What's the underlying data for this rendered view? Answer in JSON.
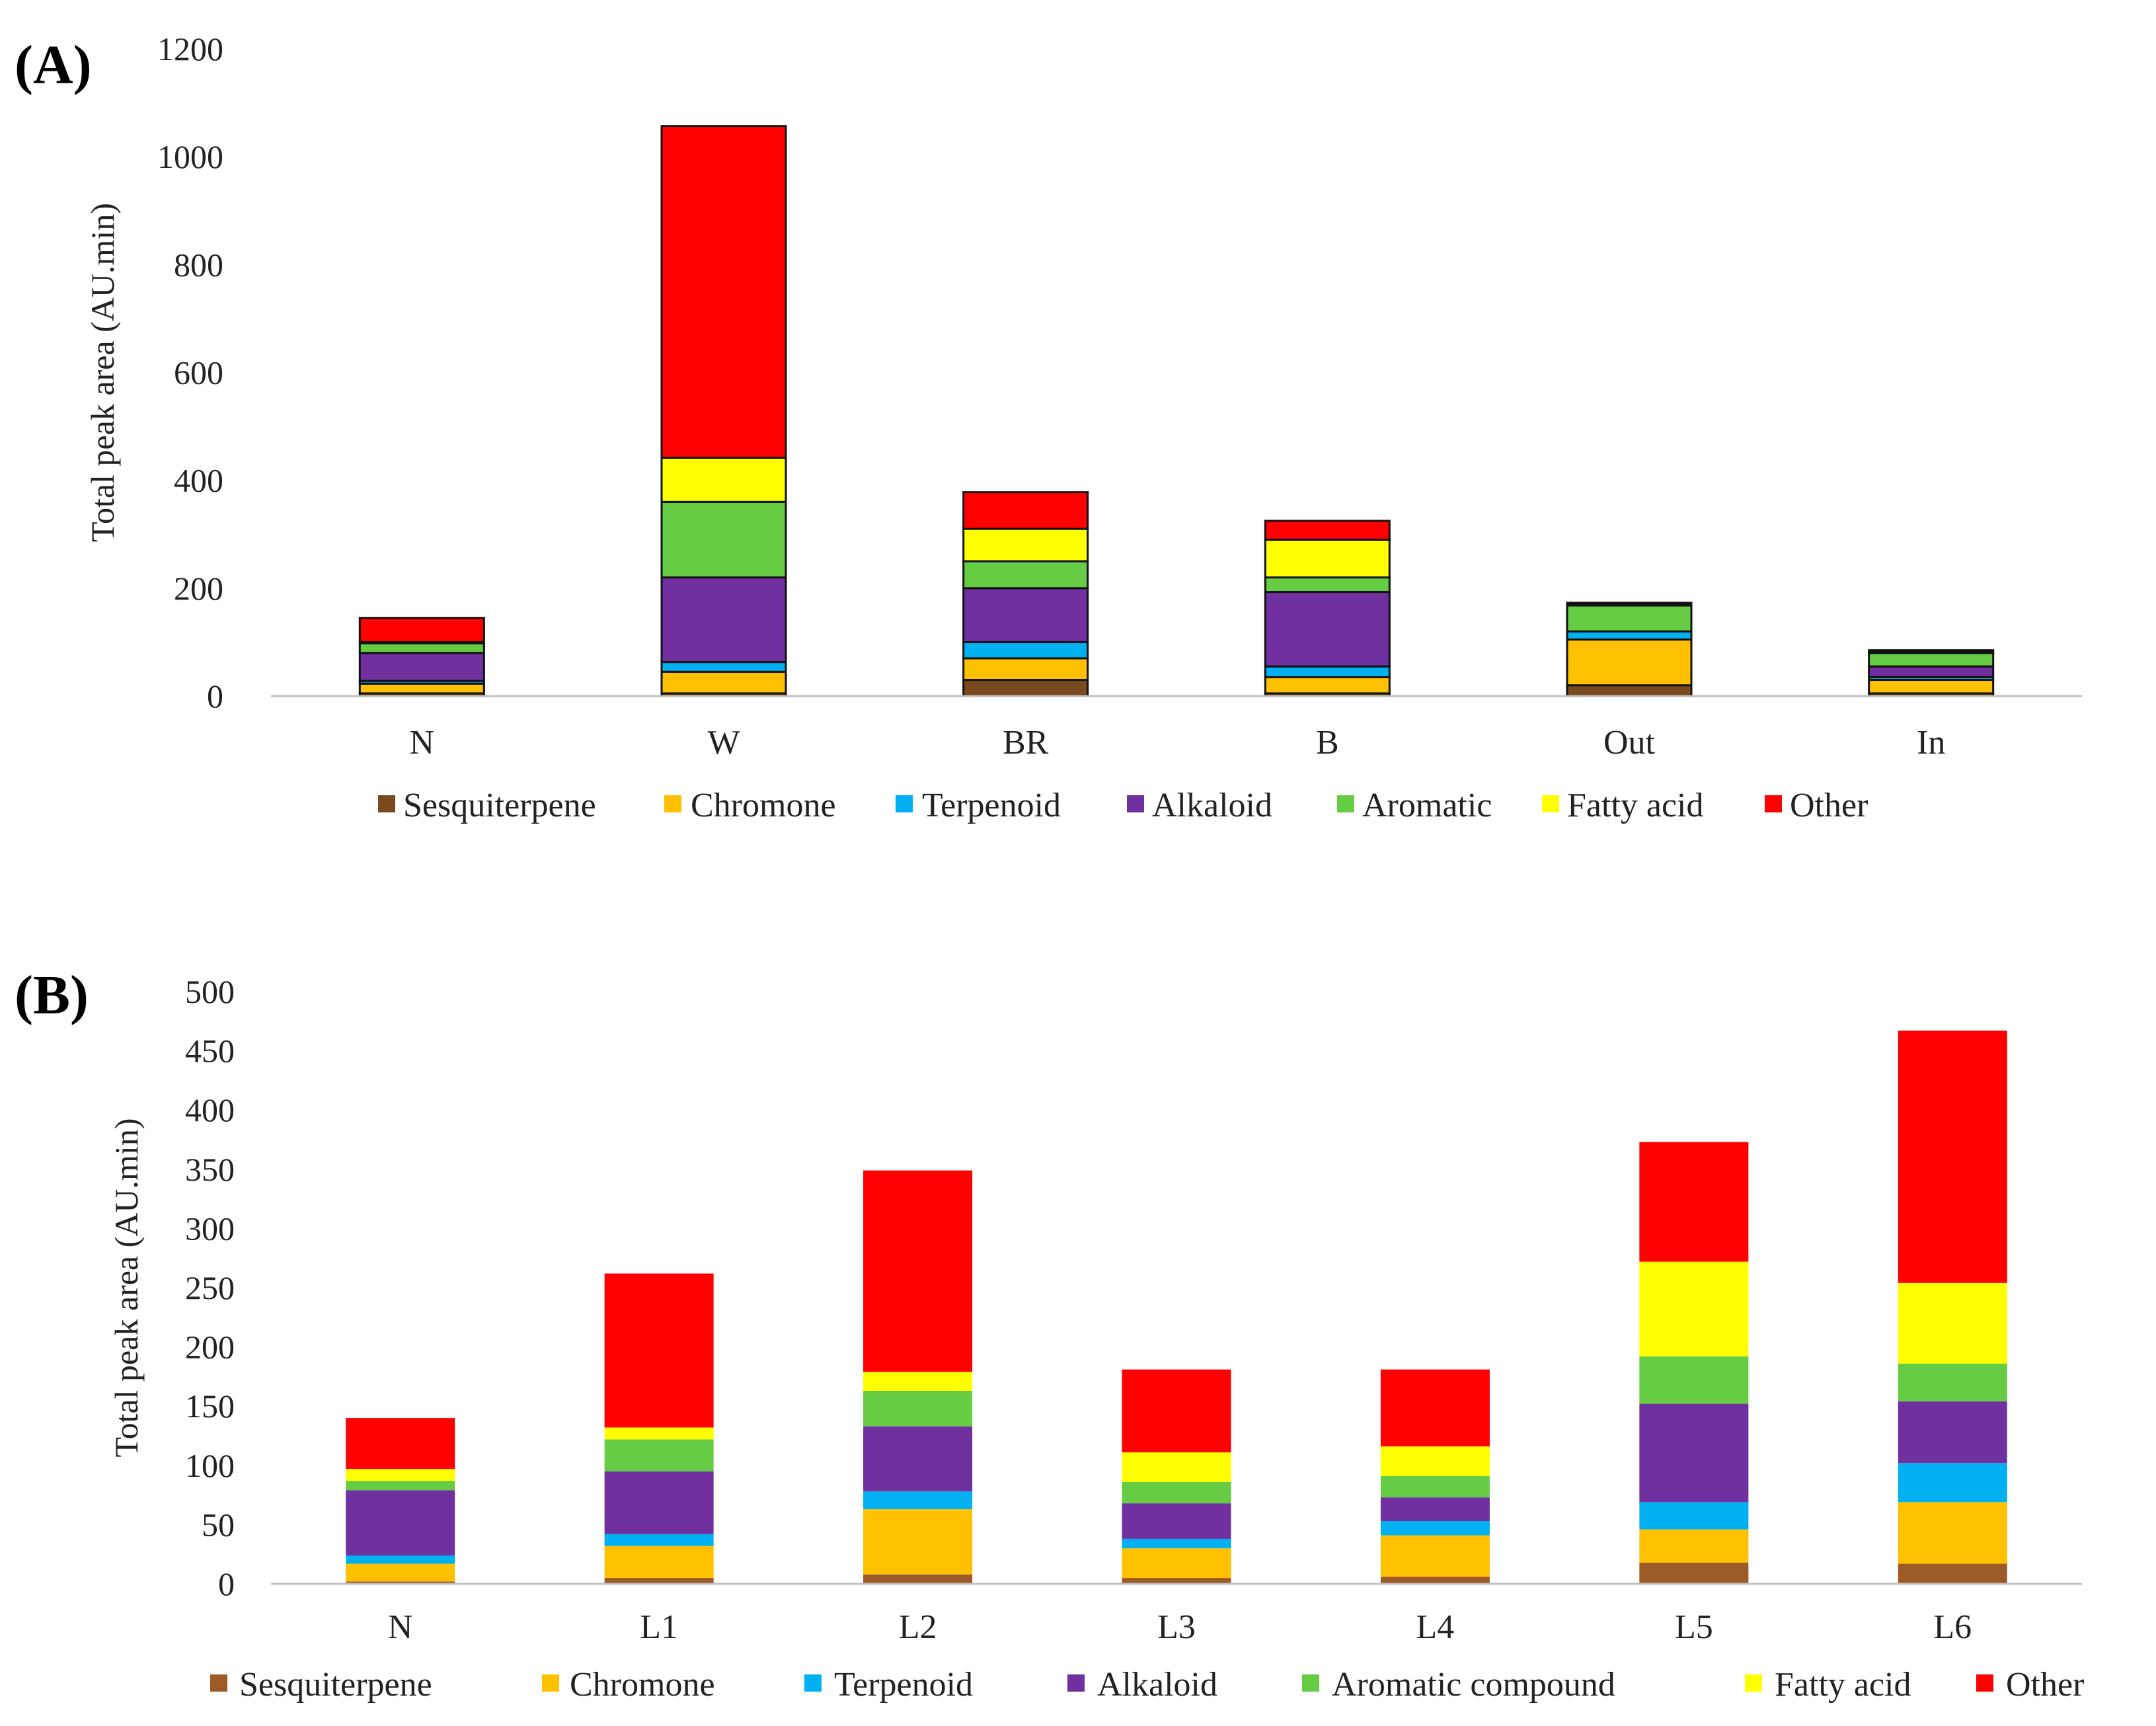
{
  "chart_data": [
    {
      "type": "bar",
      "stacked": true,
      "panel_label": "(A)",
      "title": "",
      "xlabel": "",
      "ylabel": "Total peak area (AU.min)",
      "ylim": [
        0,
        1200
      ],
      "yticks": [
        "0",
        "200",
        "400",
        "600",
        "800",
        "1000",
        "1200"
      ],
      "categories": [
        "N",
        "W",
        "BR",
        "B",
        "Out",
        "In"
      ],
      "bordered": true,
      "series": [
        {
          "name": "Sesquiterpene",
          "color": "#7a4a1f",
          "values": [
            5,
            5,
            30,
            5,
            20,
            5
          ]
        },
        {
          "name": "Chromone",
          "color": "#ffc000",
          "values": [
            18,
            40,
            40,
            30,
            85,
            25
          ]
        },
        {
          "name": "Terpenoid",
          "color": "#00b0f0",
          "values": [
            5,
            18,
            30,
            20,
            15,
            5
          ]
        },
        {
          "name": "Alkaloid",
          "color": "#7030a0",
          "values": [
            52,
            157,
            100,
            138,
            0,
            20
          ]
        },
        {
          "name": "Aromatic",
          "color": "#66cc44",
          "values": [
            18,
            140,
            50,
            27,
            48,
            25
          ]
        },
        {
          "name": "Fatty acid",
          "color": "#ffff00",
          "values": [
            2,
            82,
            60,
            70,
            2,
            2
          ]
        },
        {
          "name": "Other",
          "color": "#ff0000",
          "values": [
            45,
            615,
            68,
            35,
            3,
            3
          ]
        }
      ],
      "legend_position": "bottom"
    },
    {
      "type": "bar",
      "stacked": true,
      "panel_label": "(B)",
      "title": "",
      "xlabel": "",
      "ylabel": "Total peak area (AU.min)",
      "ylim": [
        0,
        500
      ],
      "yticks": [
        "0",
        "50",
        "100",
        "150",
        "200",
        "250",
        "300",
        "350",
        "400",
        "450",
        "500"
      ],
      "categories": [
        "N",
        "L1",
        "L2",
        "L3",
        "L4",
        "L5",
        "L6"
      ],
      "bordered": false,
      "series": [
        {
          "name": "Sesquiterpene",
          "color": "#9c5a26",
          "values": [
            2,
            5,
            8,
            5,
            6,
            18,
            17
          ]
        },
        {
          "name": "Chromone",
          "color": "#ffc000",
          "values": [
            15,
            27,
            55,
            25,
            35,
            28,
            52
          ]
        },
        {
          "name": "Terpenoid",
          "color": "#00b0f0",
          "values": [
            7,
            10,
            15,
            8,
            12,
            23,
            33
          ]
        },
        {
          "name": "Alkaloid",
          "color": "#7030a0",
          "values": [
            55,
            53,
            55,
            30,
            20,
            83,
            52
          ]
        },
        {
          "name": "Aromatic compound",
          "color": "#66cc44",
          "values": [
            8,
            27,
            30,
            18,
            18,
            40,
            32
          ]
        },
        {
          "name": "Fatty acid",
          "color": "#ffff00",
          "values": [
            10,
            10,
            16,
            25,
            25,
            80,
            68
          ]
        },
        {
          "name": "Other",
          "color": "#ff0000",
          "values": [
            43,
            130,
            170,
            70,
            65,
            101,
            213
          ]
        }
      ],
      "legend_position": "bottom"
    }
  ]
}
